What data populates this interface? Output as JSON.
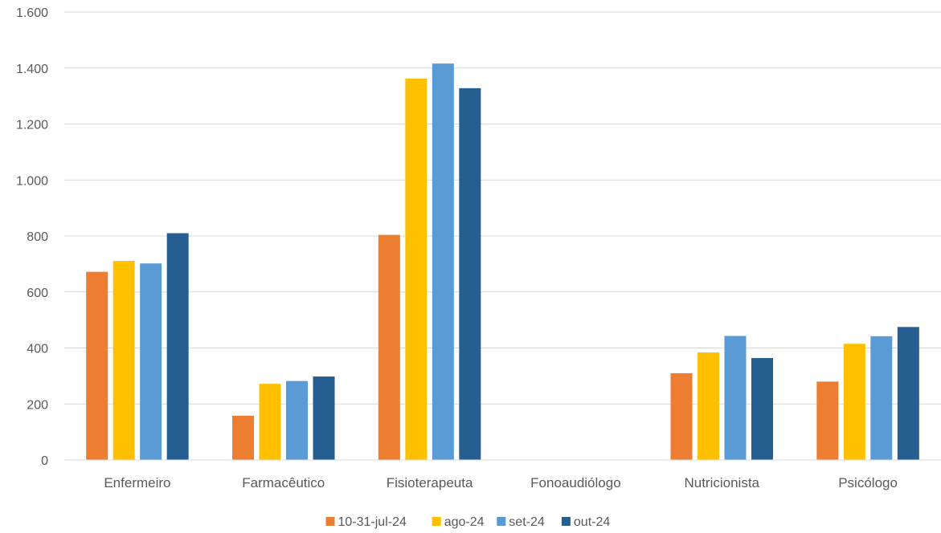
{
  "chart_data": {
    "type": "bar",
    "categories": [
      "Enfermeiro",
      "Farmacêutico",
      "Fisioterapeuta",
      "Fonoaudiólogo",
      "Nutricionista",
      "Psicólogo"
    ],
    "series": [
      {
        "name": "10-31-jul-24",
        "color": "#ED7D31",
        "values": [
          672,
          158,
          804,
          0,
          310,
          280
        ]
      },
      {
        "name": "ago-24",
        "color": "#FFC000",
        "values": [
          711,
          272,
          1362,
          0,
          384,
          415
        ]
      },
      {
        "name": "set-24",
        "color": "#5B9BD5",
        "values": [
          702,
          282,
          1416,
          0,
          443,
          442
        ]
      },
      {
        "name": "out-24",
        "color": "#255E91",
        "values": [
          810,
          298,
          1328,
          0,
          364,
          475
        ]
      }
    ],
    "ylim": [
      0,
      1600
    ],
    "yticks": [
      0,
      200,
      400,
      600,
      800,
      1000,
      1200,
      1400,
      1600
    ],
    "ytick_labels": [
      "0",
      "200",
      "400",
      "600",
      "800",
      "1.000",
      "1.200",
      "1.400",
      "1.600"
    ],
    "grid": true,
    "legend_position": "bottom"
  }
}
